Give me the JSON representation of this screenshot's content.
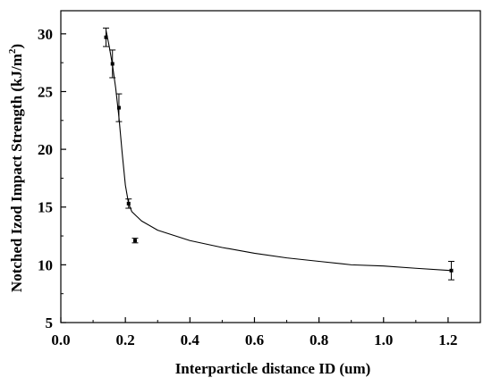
{
  "chart_data": {
    "type": "scatter",
    "title": "",
    "xlabel": "Interparticle distance ID (um)",
    "ylabel_main": "Notched Izod Impact Strength (kJ/m",
    "ylabel_sup": "2",
    "ylabel_close": ")",
    "xlim": [
      0.0,
      1.3
    ],
    "ylim": [
      5,
      32
    ],
    "x_ticks": [
      0.0,
      0.2,
      0.4,
      0.6,
      0.8,
      1.0,
      1.2
    ],
    "x_tick_labels": [
      "0.0",
      "0.2",
      "0.4",
      "0.6",
      "0.8",
      "1.0",
      "1.2"
    ],
    "y_ticks": [
      5,
      10,
      15,
      20,
      25,
      30
    ],
    "y_tick_labels": [
      "5",
      "10",
      "15",
      "20",
      "25",
      "30"
    ],
    "grid": false,
    "legend": "none",
    "points": [
      {
        "x": 0.14,
        "y": 29.7,
        "err": 0.8
      },
      {
        "x": 0.16,
        "y": 27.4,
        "err": 1.2
      },
      {
        "x": 0.18,
        "y": 23.6,
        "err": 1.2
      },
      {
        "x": 0.21,
        "y": 15.3,
        "err": 0.4
      },
      {
        "x": 0.23,
        "y": 12.1,
        "err": 0.2
      },
      {
        "x": 1.21,
        "y": 9.5,
        "err": 0.8
      }
    ],
    "fit_curve": [
      [
        0.14,
        30.3
      ],
      [
        0.15,
        28.9
      ],
      [
        0.16,
        27.3
      ],
      [
        0.17,
        25.3
      ],
      [
        0.18,
        22.8
      ],
      [
        0.19,
        19.7
      ],
      [
        0.2,
        16.9
      ],
      [
        0.21,
        15.3
      ],
      [
        0.22,
        14.6
      ],
      [
        0.25,
        13.8
      ],
      [
        0.3,
        13.0
      ],
      [
        0.4,
        12.1
      ],
      [
        0.5,
        11.5
      ],
      [
        0.6,
        11.0
      ],
      [
        0.7,
        10.6
      ],
      [
        0.8,
        10.3
      ],
      [
        0.9,
        10.0
      ],
      [
        1.0,
        9.9
      ],
      [
        1.1,
        9.7
      ],
      [
        1.21,
        9.5
      ]
    ],
    "colors": {
      "marker": "#000000",
      "line": "#000000",
      "axis": "#000000"
    }
  }
}
